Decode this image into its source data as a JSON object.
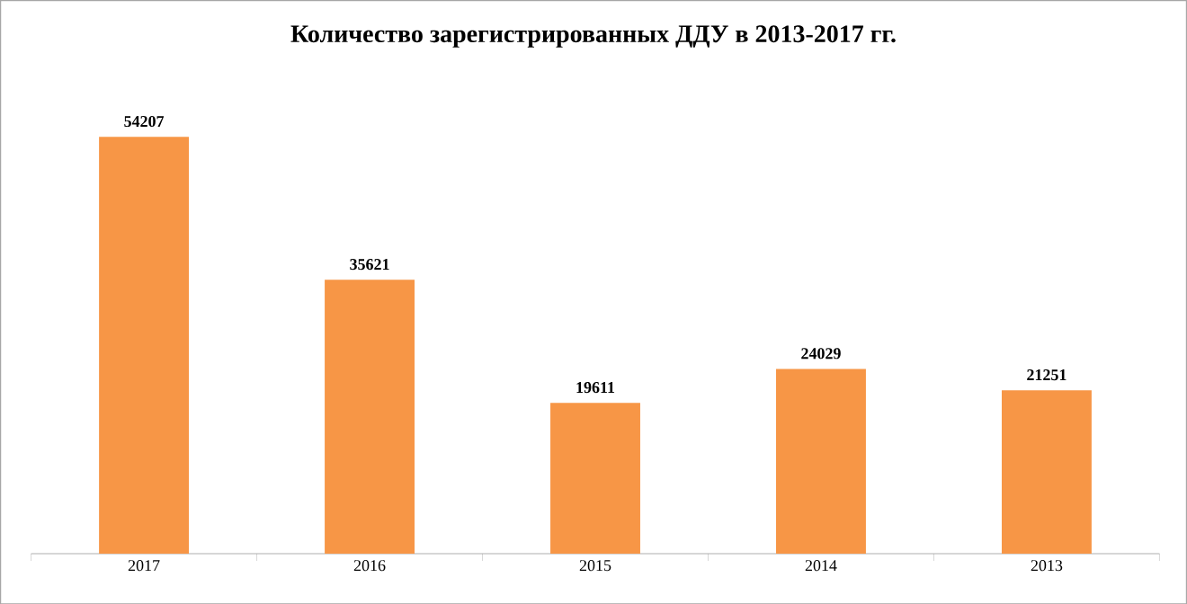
{
  "chart_data": {
    "type": "bar",
    "title": "Количество зарегистрированных ДДУ в 2013-2017 гг.",
    "categories": [
      "2017",
      "2016",
      "2015",
      "2014",
      "2013"
    ],
    "values": [
      54207,
      35621,
      19611,
      24029,
      21251
    ],
    "color": "#f79646",
    "data_labels": true
  }
}
